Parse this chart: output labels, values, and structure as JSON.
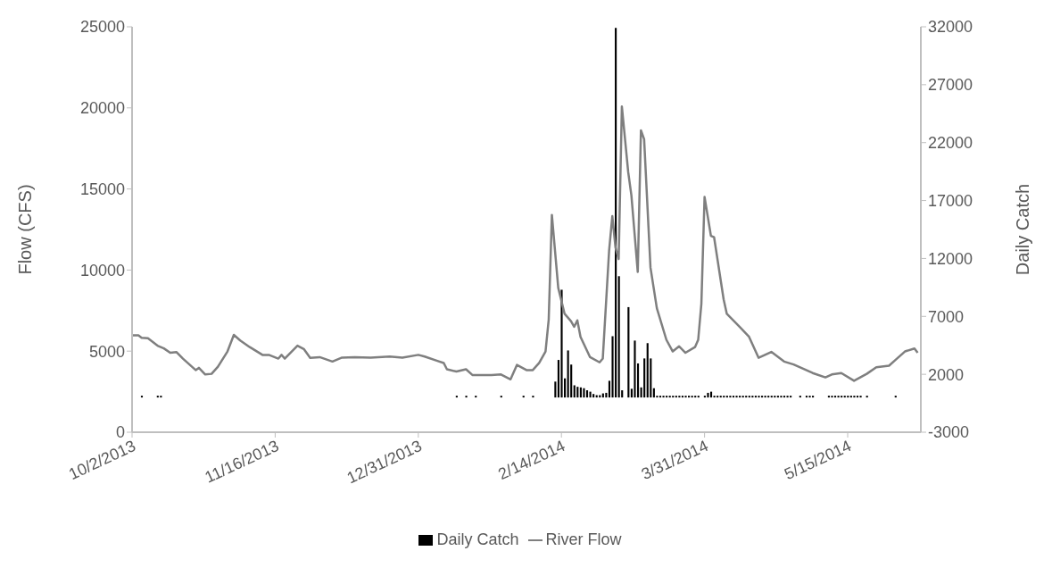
{
  "chart_data": {
    "type": "bar",
    "legend": "bottom",
    "xlabel": null,
    "ylabel": "Flow (CFS)",
    "y2label": "Daily Catch",
    "xlim": [
      "2013-10-02",
      "2014-06-07"
    ],
    "xticks": [
      {
        "value": "2013-10-02",
        "label": "10/2/2013"
      },
      {
        "value": "2013-11-16",
        "label": "11/16/2013"
      },
      {
        "value": "2013-12-31",
        "label": "12/31/2013"
      },
      {
        "value": "2014-02-14",
        "label": "2/14/2014"
      },
      {
        "value": "2014-03-31",
        "label": "3/31/2014"
      },
      {
        "value": "2014-05-15",
        "label": "5/15/2014"
      }
    ],
    "ylim": [
      0,
      25000
    ],
    "yticks": [
      0,
      5000,
      10000,
      15000,
      20000,
      25000
    ],
    "y2lim": [
      -3000,
      32000
    ],
    "y2ticks": [
      -3000,
      2000,
      7000,
      12000,
      17000,
      22000,
      27000,
      32000
    ],
    "series": [
      {
        "name": "Daily Catch",
        "axis": "y2",
        "color": "#000000",
        "x": [
          "2013-10-05",
          "2013-10-10",
          "2013-10-11",
          "2014-01-12",
          "2014-01-15",
          "2014-01-18",
          "2014-01-26",
          "2014-02-02",
          "2014-02-05",
          "2014-02-12",
          "2014-02-13",
          "2014-02-14",
          "2014-02-15",
          "2014-02-16",
          "2014-02-17",
          "2014-02-18",
          "2014-02-19",
          "2014-02-20",
          "2014-02-21",
          "2014-02-22",
          "2014-02-23",
          "2014-02-24",
          "2014-02-25",
          "2014-02-26",
          "2014-02-27",
          "2014-02-28",
          "2014-03-01",
          "2014-03-02",
          "2014-03-03",
          "2014-03-04",
          "2014-03-05",
          "2014-03-07",
          "2014-03-08",
          "2014-03-09",
          "2014-03-10",
          "2014-03-11",
          "2014-03-12",
          "2014-03-13",
          "2014-03-14",
          "2014-03-15",
          "2014-03-16",
          "2014-03-17",
          "2014-03-18",
          "2014-03-19",
          "2014-03-20",
          "2014-03-21",
          "2014-03-22",
          "2014-03-23",
          "2014-03-24",
          "2014-03-25",
          "2014-03-26",
          "2014-03-27",
          "2014-03-28",
          "2014-03-29",
          "2014-03-31",
          "2014-04-01",
          "2014-04-02",
          "2014-04-03",
          "2014-04-04",
          "2014-04-05",
          "2014-04-06",
          "2014-04-07",
          "2014-04-08",
          "2014-04-09",
          "2014-04-10",
          "2014-04-11",
          "2014-04-12",
          "2014-04-13",
          "2014-04-14",
          "2014-04-15",
          "2014-04-16",
          "2014-04-17",
          "2014-04-18",
          "2014-04-19",
          "2014-04-20",
          "2014-04-21",
          "2014-04-22",
          "2014-04-23",
          "2014-04-24",
          "2014-04-25",
          "2014-04-26",
          "2014-04-27",
          "2014-04-30",
          "2014-05-02",
          "2014-05-03",
          "2014-05-04",
          "2014-05-09",
          "2014-05-10",
          "2014-05-11",
          "2014-05-12",
          "2014-05-13",
          "2014-05-14",
          "2014-05-15",
          "2014-05-16",
          "2014-05-17",
          "2014-05-18",
          "2014-05-19",
          "2014-05-21",
          "2014-05-30"
        ],
        "values": [
          150,
          150,
          150,
          150,
          150,
          150,
          150,
          150,
          150,
          1370,
          3240,
          9300,
          1650,
          4060,
          2840,
          1050,
          920,
          870,
          800,
          620,
          500,
          300,
          200,
          200,
          350,
          400,
          1440,
          5290,
          31900,
          10470,
          620,
          7800,
          750,
          4910,
          2940,
          870,
          3370,
          4690,
          3370,
          800,
          150,
          150,
          150,
          150,
          150,
          150,
          150,
          150,
          150,
          150,
          150,
          150,
          150,
          150,
          150,
          400,
          500,
          150,
          150,
          150,
          150,
          150,
          150,
          150,
          150,
          150,
          150,
          150,
          150,
          150,
          150,
          150,
          150,
          150,
          150,
          150,
          150,
          150,
          150,
          150,
          150,
          150,
          150,
          150,
          150,
          150,
          150,
          150,
          150,
          150,
          150,
          150,
          150,
          150,
          150,
          150,
          150,
          150,
          150
        ]
      },
      {
        "name": "River Flow",
        "type": "line",
        "color": "#7f7f7f",
        "x": [
          "2013-10-02",
          "2013-10-04",
          "2013-10-05",
          "2013-10-07",
          "2013-10-10",
          "2013-10-12",
          "2013-10-14",
          "2013-10-16",
          "2013-10-18",
          "2013-10-22",
          "2013-10-23",
          "2013-10-25",
          "2013-10-27",
          "2013-10-29",
          "2013-11-01",
          "2013-11-03",
          "2013-11-05",
          "2013-11-08",
          "2013-11-12",
          "2013-11-14",
          "2013-11-17",
          "2013-11-18",
          "2013-11-19",
          "2013-11-23",
          "2013-11-25",
          "2013-11-27",
          "2013-11-30",
          "2013-12-04",
          "2013-12-07",
          "2013-12-11",
          "2013-12-16",
          "2013-12-22",
          "2013-12-26",
          "2013-12-31",
          "2014-01-02",
          "2014-01-06",
          "2014-01-08",
          "2014-01-09",
          "2014-01-12",
          "2014-01-15",
          "2014-01-17",
          "2014-01-23",
          "2014-01-26",
          "2014-01-29",
          "2014-01-31",
          "2014-02-03",
          "2014-02-05",
          "2014-02-07",
          "2014-02-09",
          "2014-02-10",
          "2014-02-11",
          "2014-02-13",
          "2014-02-15",
          "2014-02-17",
          "2014-02-18",
          "2014-02-19",
          "2014-02-20",
          "2014-02-23",
          "2014-02-26",
          "2014-02-27",
          "2014-03-01",
          "2014-03-02",
          "2014-03-03",
          "2014-03-04",
          "2014-03-05",
          "2014-03-07",
          "2014-03-08",
          "2014-03-10",
          "2014-03-11",
          "2014-03-12",
          "2014-03-14",
          "2014-03-16",
          "2014-03-19",
          "2014-03-21",
          "2014-03-23",
          "2014-03-25",
          "2014-03-28",
          "2014-03-29",
          "2014-03-30",
          "2014-03-31",
          "2014-04-02",
          "2014-04-03",
          "2014-04-06",
          "2014-04-07",
          "2014-04-11",
          "2014-04-14",
          "2014-04-17",
          "2014-04-21",
          "2014-04-25",
          "2014-04-28",
          "2014-05-04",
          "2014-05-08",
          "2014-05-10",
          "2014-05-13",
          "2014-05-17",
          "2014-05-21",
          "2014-05-24",
          "2014-05-28",
          "2014-05-30",
          "2014-06-02",
          "2014-06-05",
          "2014-06-06"
        ],
        "values": [
          5970,
          5970,
          5820,
          5790,
          5340,
          5170,
          4900,
          4940,
          4540,
          3830,
          3970,
          3560,
          3600,
          4040,
          4980,
          6000,
          5660,
          5250,
          4770,
          4770,
          4540,
          4770,
          4540,
          5340,
          5130,
          4580,
          4630,
          4360,
          4600,
          4630,
          4600,
          4670,
          4600,
          4770,
          4670,
          4400,
          4270,
          3880,
          3740,
          3880,
          3530,
          3530,
          3560,
          3260,
          4150,
          3830,
          3830,
          4270,
          4980,
          6940,
          13400,
          8900,
          7300,
          6850,
          6500,
          6900,
          5880,
          4630,
          4310,
          4540,
          11220,
          13320,
          11390,
          10680,
          20090,
          16030,
          14600,
          9880,
          18610,
          18070,
          10150,
          7650,
          5700,
          4980,
          5300,
          4900,
          5250,
          5700,
          7920,
          14510,
          12110,
          12020,
          8190,
          7300,
          6500,
          5880,
          4590,
          4950,
          4360,
          4180,
          3650,
          3380,
          3560,
          3650,
          3170,
          3600,
          4010,
          4100,
          4450,
          4980,
          5160,
          4900
        ]
      }
    ]
  }
}
